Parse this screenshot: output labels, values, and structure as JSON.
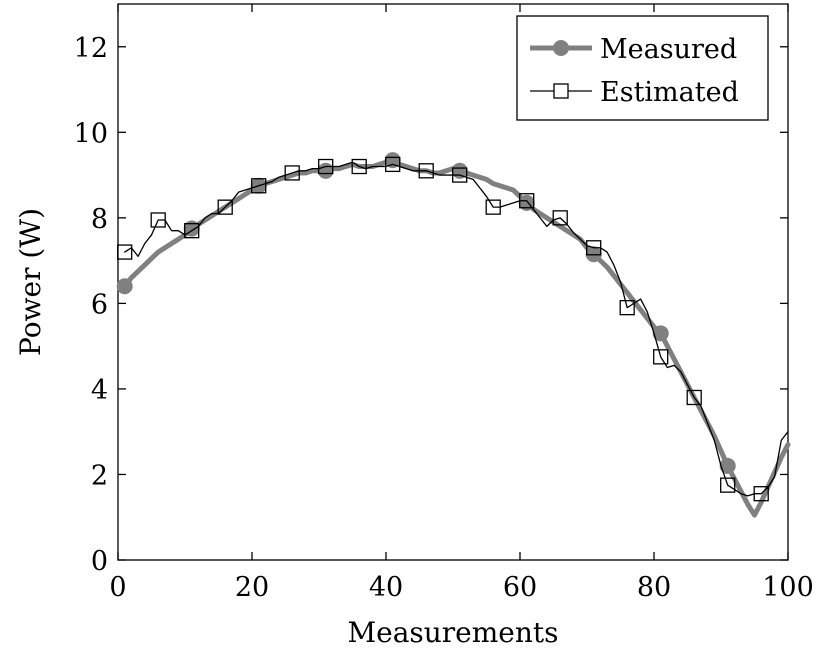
{
  "chart_data": {
    "type": "line",
    "title": "",
    "xlabel": "Measurements",
    "ylabel": "Power (W)",
    "xlim": [
      0,
      100
    ],
    "ylim": [
      0,
      13
    ],
    "xticks": [
      0,
      20,
      40,
      60,
      80,
      100
    ],
    "yticks": [
      0,
      2,
      4,
      6,
      8,
      10,
      12
    ],
    "grid": false,
    "legend_position": "top-right",
    "colors": {
      "measured": "#808080",
      "estimated": "#000000"
    },
    "series": [
      {
        "name": "Measured",
        "marker": "circle",
        "marker_every": 10,
        "marker_offset": 1,
        "x": [
          1,
          2,
          3,
          4,
          5,
          6,
          7,
          8,
          9,
          10,
          11,
          12,
          13,
          14,
          15,
          16,
          17,
          18,
          19,
          20,
          21,
          22,
          23,
          24,
          25,
          26,
          27,
          28,
          29,
          30,
          31,
          32,
          33,
          34,
          35,
          36,
          37,
          38,
          39,
          40,
          41,
          42,
          43,
          44,
          45,
          46,
          47,
          48,
          49,
          50,
          51,
          52,
          53,
          54,
          55,
          56,
          57,
          58,
          59,
          60,
          61,
          62,
          63,
          64,
          65,
          66,
          67,
          68,
          69,
          70,
          71,
          72,
          73,
          74,
          75,
          76,
          77,
          78,
          79,
          80,
          81,
          82,
          83,
          84,
          85,
          86,
          87,
          88,
          89,
          90,
          91,
          92,
          93,
          94,
          95,
          96,
          97,
          98,
          99,
          100
        ],
        "values": [
          6.4,
          6.6,
          6.75,
          6.9,
          7.05,
          7.2,
          7.3,
          7.4,
          7.5,
          7.6,
          7.75,
          7.85,
          7.95,
          8.05,
          8.15,
          8.25,
          8.35,
          8.45,
          8.55,
          8.65,
          8.75,
          8.8,
          8.85,
          8.9,
          8.95,
          9.0,
          9.05,
          9.05,
          9.1,
          9.1,
          9.1,
          9.15,
          9.15,
          9.2,
          9.25,
          9.2,
          9.2,
          9.2,
          9.25,
          9.3,
          9.35,
          9.25,
          9.2,
          9.15,
          9.1,
          9.1,
          9.05,
          9.05,
          9.1,
          9.15,
          9.1,
          9.05,
          9.0,
          8.95,
          8.9,
          8.8,
          8.75,
          8.7,
          8.65,
          8.5,
          8.35,
          8.2,
          8.1,
          8.0,
          7.9,
          7.8,
          7.7,
          7.6,
          7.5,
          7.3,
          7.15,
          7.0,
          6.85,
          6.65,
          6.45,
          6.25,
          6.05,
          5.85,
          5.65,
          5.45,
          5.3,
          5.0,
          4.7,
          4.4,
          4.1,
          3.8,
          3.5,
          3.2,
          2.9,
          2.55,
          2.2,
          1.9,
          1.6,
          1.3,
          1.05,
          1.35,
          1.7,
          2.05,
          2.4,
          2.7
        ]
      },
      {
        "name": "Estimated",
        "marker": "square",
        "marker_every": 5,
        "marker_offset": 1,
        "x": [
          1,
          2,
          3,
          4,
          5,
          6,
          7,
          8,
          9,
          10,
          11,
          12,
          13,
          14,
          15,
          16,
          17,
          18,
          19,
          20,
          21,
          22,
          23,
          24,
          25,
          26,
          27,
          28,
          29,
          30,
          31,
          32,
          33,
          34,
          35,
          36,
          37,
          38,
          39,
          40,
          41,
          42,
          43,
          44,
          45,
          46,
          47,
          48,
          49,
          50,
          51,
          52,
          53,
          54,
          55,
          56,
          57,
          58,
          59,
          60,
          61,
          62,
          63,
          64,
          65,
          66,
          67,
          68,
          69,
          70,
          71,
          72,
          73,
          74,
          75,
          76,
          77,
          78,
          79,
          80,
          81,
          82,
          83,
          84,
          85,
          86,
          87,
          88,
          89,
          90,
          91,
          92,
          93,
          94,
          95,
          96,
          97,
          98,
          99,
          100
        ],
        "values": [
          7.2,
          7.3,
          7.1,
          7.4,
          7.6,
          7.95,
          7.95,
          7.7,
          7.7,
          7.6,
          7.7,
          7.8,
          8.0,
          8.1,
          8.1,
          8.25,
          8.4,
          8.6,
          8.65,
          8.7,
          8.75,
          8.8,
          8.85,
          8.95,
          9.0,
          9.05,
          9.1,
          9.1,
          9.15,
          9.15,
          9.2,
          9.2,
          9.2,
          9.25,
          9.3,
          9.2,
          9.15,
          9.2,
          9.2,
          9.2,
          9.25,
          9.2,
          9.15,
          9.1,
          9.1,
          9.1,
          9.05,
          9.0,
          9.0,
          9.0,
          9.0,
          8.95,
          8.9,
          8.7,
          8.5,
          8.25,
          8.25,
          8.3,
          8.35,
          8.4,
          8.4,
          8.2,
          8.0,
          7.8,
          7.95,
          8.0,
          7.85,
          7.65,
          7.5,
          7.35,
          7.3,
          7.3,
          7.2,
          6.9,
          6.5,
          5.9,
          6.0,
          6.1,
          5.8,
          5.3,
          4.75,
          4.5,
          4.55,
          4.4,
          4.1,
          3.8,
          3.6,
          3.2,
          2.8,
          2.2,
          1.75,
          1.65,
          1.55,
          1.5,
          1.55,
          1.55,
          1.7,
          1.95,
          2.8,
          3.0
        ]
      }
    ]
  }
}
